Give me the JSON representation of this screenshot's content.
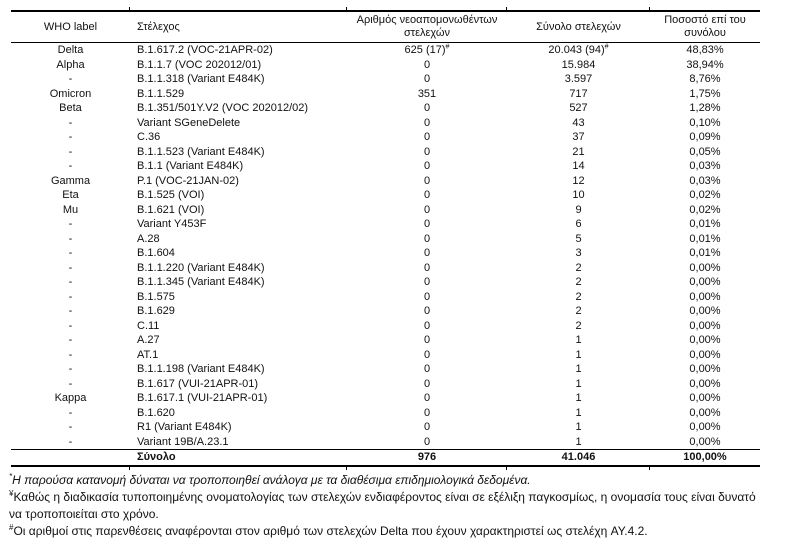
{
  "table": {
    "columns": [
      "WHO label",
      "Στέλεχος",
      "Αριθμός νεοαπομονωθέντων στελεχών",
      "Σύνολο στελεχών",
      "Ποσοστό επί του συνόλου"
    ],
    "rows": [
      {
        "who": "Delta",
        "strain": "B.1.617.2 (VOC-21APR-02)",
        "new": "625 (17)",
        "new_sup": "#",
        "total": "20.043 (94)",
        "total_sup": "#",
        "pct": "48,83%"
      },
      {
        "who": "Alpha",
        "strain": "B.1.1.7 (VOC 202012/01)",
        "new": "0",
        "total": "15.984",
        "pct": "38,94%"
      },
      {
        "who": "-",
        "strain": "B.1.1.318 (Variant E484K)",
        "new": "0",
        "total": "3.597",
        "pct": "8,76%"
      },
      {
        "who": "Omicron",
        "strain": "B.1.1.529",
        "new": "351",
        "total": "717",
        "pct": "1,75%"
      },
      {
        "who": "Beta",
        "strain": "B.1.351/501Y.V2 (VOC 202012/02)",
        "new": "0",
        "total": "527",
        "pct": "1,28%"
      },
      {
        "who": "-",
        "strain": "Variant SGeneDelete",
        "new": "0",
        "total": "43",
        "pct": "0,10%"
      },
      {
        "who": "-",
        "strain": "C.36",
        "new": "0",
        "total": "37",
        "pct": "0,09%"
      },
      {
        "who": "-",
        "strain": "B.1.1.523 (Variant E484K)",
        "new": "0",
        "total": "21",
        "pct": "0,05%"
      },
      {
        "who": "-",
        "strain": "B.1.1 (Variant E484K)",
        "new": "0",
        "total": "14",
        "pct": "0,03%"
      },
      {
        "who": "Gamma",
        "strain": "P.1 (VOC-21JAN-02)",
        "new": "0",
        "total": "12",
        "pct": "0,03%"
      },
      {
        "who": "Eta",
        "strain": "B.1.525 (VOI)",
        "new": "0",
        "total": "10",
        "pct": "0,02%"
      },
      {
        "who": "Mu",
        "strain": "B.1.621 (VOI)",
        "new": "0",
        "total": "9",
        "pct": "0,02%"
      },
      {
        "who": "-",
        "strain": "Variant Y453F",
        "new": "0",
        "total": "6",
        "pct": "0,01%"
      },
      {
        "who": "-",
        "strain": "A.28",
        "new": "0",
        "total": "5",
        "pct": "0,01%"
      },
      {
        "who": "-",
        "strain": "B.1.604",
        "new": "0",
        "total": "3",
        "pct": "0,01%"
      },
      {
        "who": "-",
        "strain": "B.1.1.220 (Variant E484K)",
        "new": "0",
        "total": "2",
        "pct": "0,00%"
      },
      {
        "who": "-",
        "strain": "B.1.1.345 (Variant E484K)",
        "new": "0",
        "total": "2",
        "pct": "0,00%"
      },
      {
        "who": "-",
        "strain": "B.1.575",
        "new": "0",
        "total": "2",
        "pct": "0,00%"
      },
      {
        "who": "-",
        "strain": "B.1.629",
        "new": "0",
        "total": "2",
        "pct": "0,00%"
      },
      {
        "who": "-",
        "strain": "C.11",
        "new": "0",
        "total": "2",
        "pct": "0,00%"
      },
      {
        "who": "-",
        "strain": "A.27",
        "new": "0",
        "total": "1",
        "pct": "0,00%"
      },
      {
        "who": "-",
        "strain": "AT.1",
        "new": "0",
        "total": "1",
        "pct": "0,00%"
      },
      {
        "who": "-",
        "strain": "B.1.1.198 (Variant E484K)",
        "new": "0",
        "total": "1",
        "pct": "0,00%"
      },
      {
        "who": "-",
        "strain": "B.1.617 (VUI-21APR-01)",
        "new": "0",
        "total": "1",
        "pct": "0,00%"
      },
      {
        "who": "Kappa",
        "strain": "B.1.617.1 (VUI-21APR-01)",
        "new": "0",
        "total": "1",
        "pct": "0,00%"
      },
      {
        "who": "-",
        "strain": "B.1.620",
        "new": "0",
        "total": "1",
        "pct": "0,00%"
      },
      {
        "who": "-",
        "strain": "R1 (Variant E484K)",
        "new": "0",
        "total": "1",
        "pct": "0,00%"
      },
      {
        "who": "-",
        "strain": "Variant 19B/A.23.1",
        "new": "0",
        "total": "1",
        "pct": "0,00%"
      }
    ],
    "total": {
      "who": "",
      "label": "Σύνολο",
      "new": "976",
      "total": "41.046",
      "pct": "100,00%"
    }
  },
  "footnotes": [
    {
      "marker": "*",
      "italic": true,
      "text": "Η παρούσα κατανομή δύναται να τροποποιηθεί ανάλογα με τα διαθέσιμα επιδημιολογικά δεδομένα."
    },
    {
      "marker": "¥",
      "italic": false,
      "text": "Καθώς η διαδικασία τυποποιημένης ονοματολογίας των στελεχών ενδιαφέροντος είναι σε εξέλιξη παγκοσμίως, η ονομασία τους είναι δυνατό να τροποποιείται στο χρόνο."
    },
    {
      "marker": "#",
      "italic": false,
      "text": "Οι αριθμοί στις παρενθέσεις αναφέρονται στον αριθμό των στελεχών Delta που έχουν χαρακτηριστεί ως στελέχη AY.4.2."
    }
  ],
  "colors": {
    "text": "#111111",
    "border": "#000000",
    "background": "#ffffff"
  }
}
